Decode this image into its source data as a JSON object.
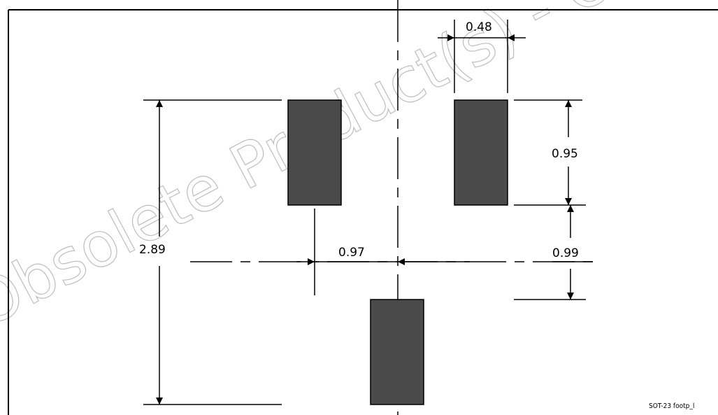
{
  "drawing": {
    "package": "SOT-23 footprint",
    "figure_label": "SOT-23 footp_l",
    "watermark": "Obsolete Product(s) - Obsolete",
    "pad_color": "#4a4a4a",
    "line_color": "#000000",
    "dimensions": {
      "pad_width": "0.48",
      "pad_height": "0.95",
      "pad_gap": "0.99",
      "center_offset": "0.97",
      "overall_height": "2.89"
    }
  }
}
